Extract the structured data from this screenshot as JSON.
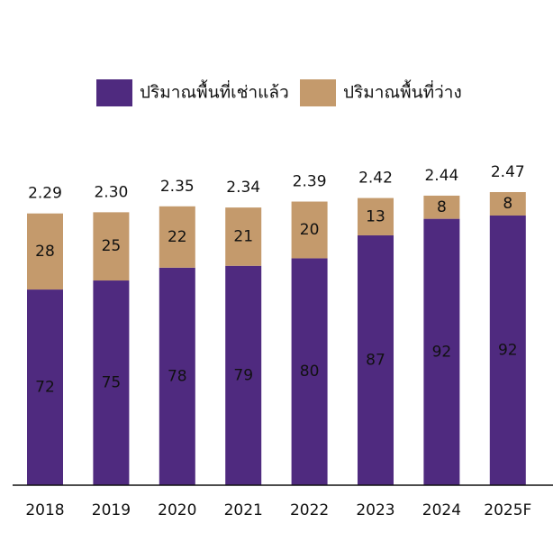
{
  "chart_data": {
    "type": "stacked_bar",
    "categories": [
      "2018",
      "2019",
      "2020",
      "2021",
      "2022",
      "2023",
      "2024",
      "2025F"
    ],
    "series": [
      {
        "name": "ปริมาณพื้นที่เช่าแล้ว",
        "color": "#4f2a7f",
        "values": [
          72,
          75,
          78,
          79,
          80,
          87,
          92,
          92
        ]
      },
      {
        "name": "ปริมาณพื้นที่ว่าง",
        "color": "#c49a6c",
        "values": [
          28,
          25,
          22,
          21,
          20,
          13,
          8,
          8
        ]
      }
    ],
    "totals": {
      "values": [
        2.29,
        2.3,
        2.35,
        2.34,
        2.39,
        2.42,
        2.44,
        2.47
      ],
      "value_labels": [
        "2.29",
        "2.30",
        "2.35",
        "2.34",
        "2.39",
        "2.42",
        "2.44",
        "2.47"
      ]
    },
    "legend": "top"
  }
}
